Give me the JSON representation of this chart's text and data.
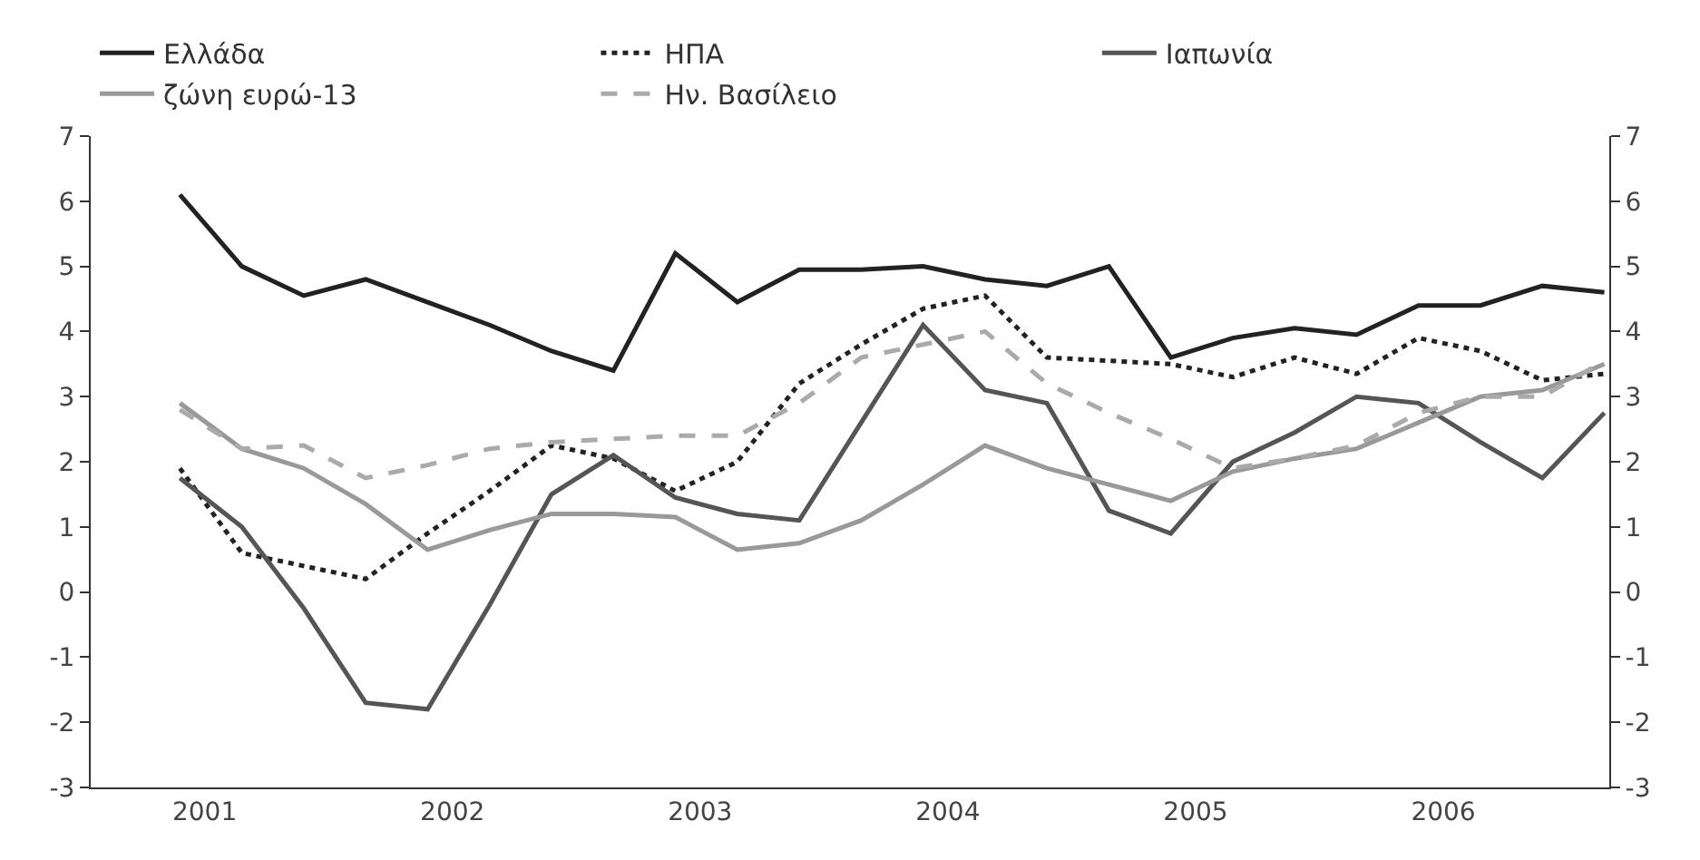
{
  "chart_data": {
    "type": "line",
    "x": [
      2001.0,
      2001.25,
      2001.5,
      2001.75,
      2002.0,
      2002.25,
      2002.5,
      2002.75,
      2003.0,
      2003.25,
      2003.5,
      2003.75,
      2004.0,
      2004.25,
      2004.5,
      2004.75,
      2005.0,
      2005.25,
      2005.5,
      2005.75,
      2006.0,
      2006.25,
      2006.5,
      2006.75
    ],
    "series": [
      {
        "name": "Ελλάδα",
        "color": "#222222",
        "line_style": "solid",
        "values": [
          6.1,
          5.0,
          4.55,
          4.8,
          4.45,
          4.1,
          3.7,
          3.4,
          5.2,
          4.45,
          4.95,
          4.95,
          5.0,
          4.8,
          4.7,
          5.0,
          3.6,
          3.9,
          4.05,
          3.95,
          4.4,
          4.4,
          4.7,
          4.6
        ]
      },
      {
        "name": "ΗΠΑ",
        "color": "#222222",
        "line_style": "dotted",
        "values": [
          1.9,
          0.6,
          0.4,
          0.2,
          0.9,
          1.55,
          2.25,
          2.05,
          1.55,
          2.0,
          3.2,
          3.8,
          4.35,
          4.55,
          3.6,
          3.55,
          3.5,
          3.3,
          3.6,
          3.35,
          3.9,
          3.7,
          3.25,
          3.35
        ]
      },
      {
        "name": "Ιαπωνία",
        "color": "#555555",
        "line_style": "solid",
        "values": [
          1.75,
          1.0,
          -0.25,
          -1.7,
          -1.8,
          -0.2,
          1.5,
          2.1,
          1.45,
          1.2,
          1.1,
          2.6,
          4.1,
          3.1,
          2.9,
          1.25,
          0.9,
          2.0,
          2.45,
          3.0,
          2.9,
          2.3,
          1.75,
          2.75
        ]
      },
      {
        "name": "ζώνη ευρώ-13",
        "color": "#999999",
        "line_style": "solid",
        "values": [
          2.9,
          2.2,
          1.9,
          1.35,
          0.65,
          0.95,
          1.2,
          1.2,
          1.15,
          0.65,
          0.75,
          1.1,
          1.65,
          2.25,
          1.9,
          1.65,
          1.4,
          1.85,
          2.05,
          2.2,
          2.6,
          3.0,
          3.1,
          3.5
        ]
      },
      {
        "name": "Ην. Βασίλειο",
        "color": "#aaaaaa",
        "line_style": "dashed",
        "values": [
          2.8,
          2.2,
          2.25,
          1.75,
          1.95,
          2.2,
          2.3,
          2.35,
          2.4,
          2.4,
          2.9,
          3.6,
          3.8,
          4.0,
          3.2,
          2.75,
          2.35,
          1.9,
          2.05,
          2.25,
          2.75,
          3.0,
          3.0,
          3.55
        ]
      }
    ],
    "xlim": [
      2000.64,
      2006.77
    ],
    "xticks": [
      {
        "value": 2001.1,
        "label": "2001"
      },
      {
        "value": 2002.1,
        "label": "2002"
      },
      {
        "value": 2003.1,
        "label": "2003"
      },
      {
        "value": 2004.1,
        "label": "2004"
      },
      {
        "value": 2005.1,
        "label": "2005"
      },
      {
        "value": 2006.1,
        "label": "2006"
      }
    ],
    "ylim": [
      -3,
      7
    ],
    "yticks": [
      -3,
      -2,
      -1,
      0,
      1,
      2,
      3,
      4,
      5,
      6,
      7
    ],
    "y2lim": [
      -3,
      7
    ],
    "y2ticks": [
      -3,
      -2,
      -1,
      0,
      1,
      2,
      3,
      4,
      5,
      6,
      7
    ],
    "legend": "top",
    "marker": "none"
  }
}
